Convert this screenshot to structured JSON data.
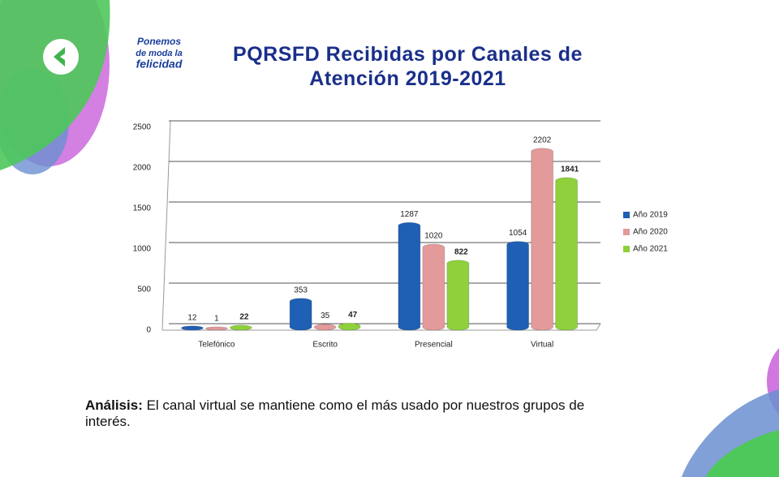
{
  "logo": {
    "lines": [
      "Ponemos",
      "de moda la",
      "felicidad"
    ]
  },
  "chart_data": {
    "type": "bar",
    "title": "PQRSFD Recibidas por Canales de Atención 2019-2021",
    "categories": [
      "Telefónico",
      "Escrito",
      "Presencial",
      "Virtual"
    ],
    "series": [
      {
        "name": "Año 2019",
        "color": "#1f5fb4",
        "values": [
          12,
          353,
          1287,
          1054
        ]
      },
      {
        "name": "Año 2020",
        "color": "#e39a9a",
        "values": [
          1,
          35,
          1020,
          2202
        ]
      },
      {
        "name": "Año 2021",
        "color": "#8fd03c",
        "values": [
          22,
          47,
          822,
          1841
        ]
      }
    ],
    "ylim": [
      0,
      2500
    ],
    "yticks": [
      0,
      500,
      1000,
      1500,
      2000,
      2500
    ],
    "grid": true,
    "legend": "right"
  },
  "analysis": {
    "label": "Análisis:",
    "text": "El canal virtual se mantiene como el más usado por nuestros grupos de interés."
  }
}
